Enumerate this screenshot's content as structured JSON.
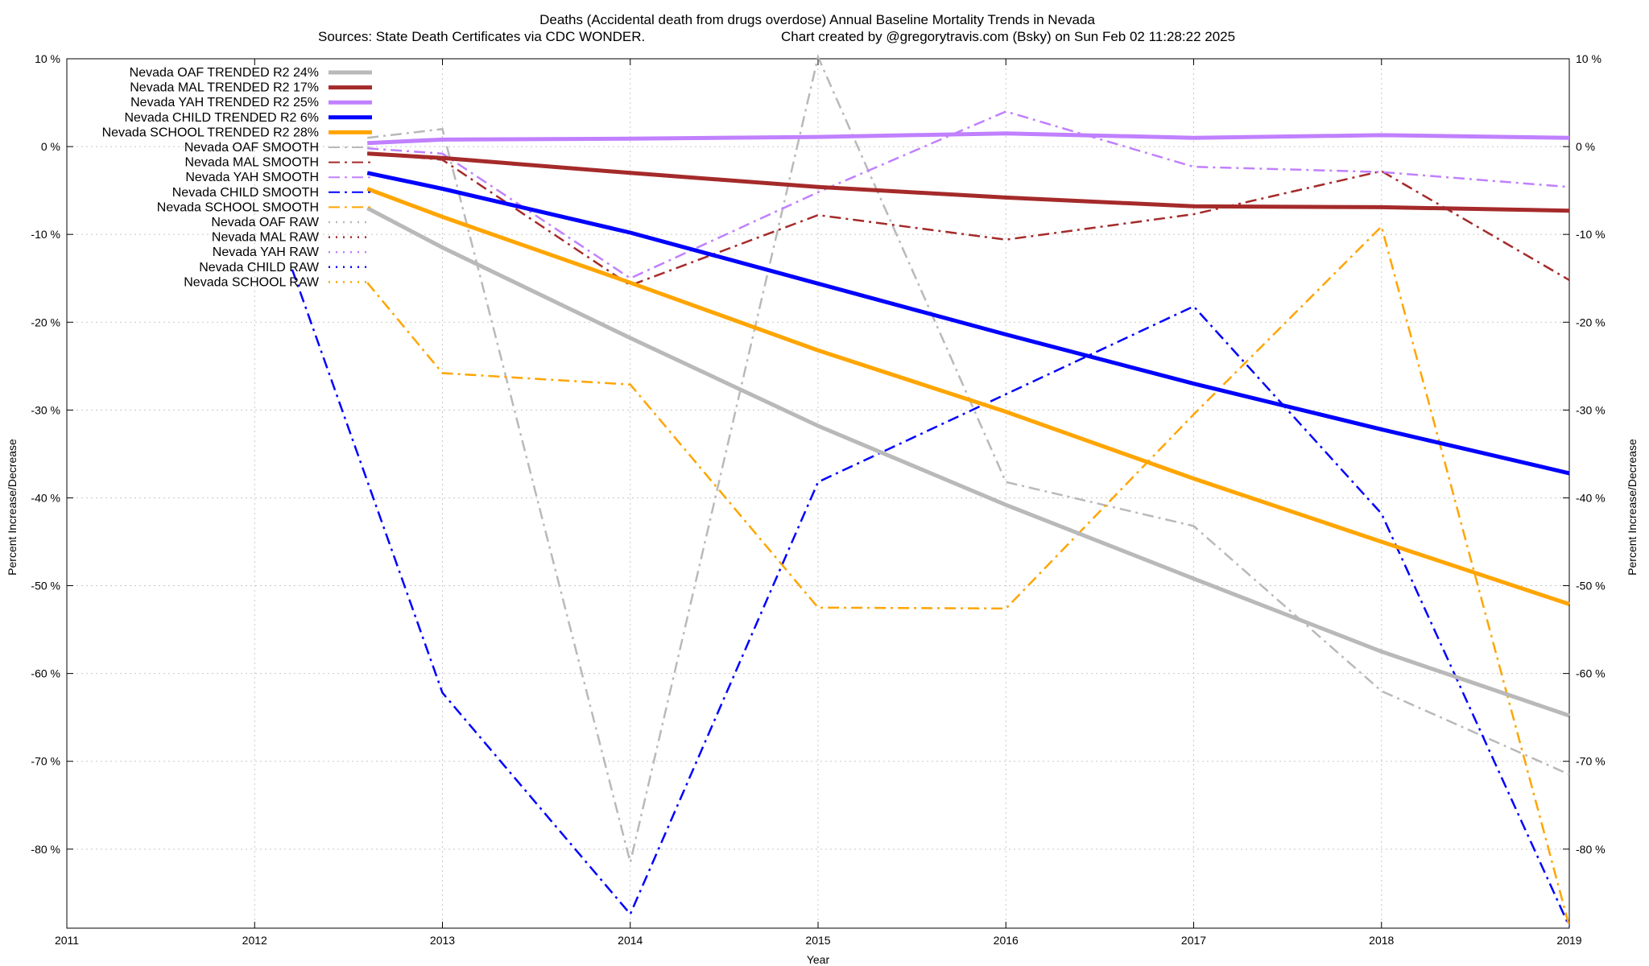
{
  "chart_data": {
    "type": "line",
    "title_line1": "Deaths (Accidental death from drugs overdose)  Annual Baseline Mortality Trends in Nevada",
    "title_line2_left": "Sources: State Death Certificates via CDC WONDER.",
    "title_line2_right": "Chart created by @gregorytravis.com (Bsky) on Sun Feb 02 11:28:22 2025",
    "xlabel": "Year",
    "ylabel_left": "Percent Increase/Decrease",
    "ylabel_right": "Percent Increase/Decrease",
    "xlim": [
      2011,
      2019
    ],
    "ylim": [
      -89,
      10
    ],
    "x_ticks": [
      "2011",
      "2012",
      "2013",
      "2014",
      "2015",
      "2016",
      "2017",
      "2018",
      "2019"
    ],
    "y_ticks_left": [
      "10 %",
      "0 %",
      "-10 %",
      "-20 %",
      "-30 %",
      "-40 %",
      "-50 %",
      "-60 %",
      "-70 %",
      "-80 %"
    ],
    "y_ticks_right": [
      "10 %",
      "0 %",
      "-10 %",
      "-20 %",
      "-30 %",
      "-40 %",
      "-50 %",
      "-60 %",
      "-70 %",
      "-80 %"
    ],
    "grid": true,
    "legend_position": "top-left",
    "series": [
      {
        "name": "Nevada OAF TRENDED R2  24%",
        "kind": "trended",
        "color": "#b9b9b9",
        "x": [
          2012.6,
          2013,
          2014,
          2015,
          2016,
          2017,
          2018,
          2019
        ],
        "y": [
          -7,
          -11.5,
          -21.8,
          -31.8,
          -40.8,
          -49.2,
          -57.5,
          -64.8
        ]
      },
      {
        "name": "Nevada MAL TRENDED R2  17%",
        "kind": "trended",
        "color": "#a52a2a",
        "x": [
          2012.6,
          2013,
          2014,
          2015,
          2016,
          2017,
          2018,
          2019
        ],
        "y": [
          -0.8,
          -1.3,
          -3,
          -4.6,
          -5.8,
          -6.8,
          -6.9,
          -7.3
        ]
      },
      {
        "name": "Nevada YAH TRENDED R2  25%",
        "kind": "trended",
        "color": "#c080ff",
        "x": [
          2012.6,
          2013,
          2014,
          2015,
          2016,
          2017,
          2018,
          2019
        ],
        "y": [
          0.4,
          0.8,
          0.9,
          1.1,
          1.5,
          1,
          1.3,
          1
        ]
      },
      {
        "name": "Nevada CHILD TRENDED R2  6%",
        "kind": "trended",
        "color": "#0000ff",
        "x": [
          2012.6,
          2013,
          2014,
          2015,
          2016,
          2017,
          2018,
          2019
        ],
        "y": [
          -3,
          -4.8,
          -9.8,
          -15.6,
          -21.4,
          -27,
          -32.2,
          -37.2
        ]
      },
      {
        "name": "Nevada SCHOOL TRENDED R2  28%",
        "kind": "trended",
        "color": "#ffa500",
        "x": [
          2012.6,
          2013,
          2014,
          2015,
          2016,
          2017,
          2018,
          2019
        ],
        "y": [
          -4.8,
          -8,
          -15.5,
          -23.2,
          -30.2,
          -37.8,
          -45,
          -52.1
        ]
      },
      {
        "name": "Nevada OAF SMOOTH",
        "kind": "smooth",
        "color": "#b9b9b9",
        "x": [
          2012.6,
          2013,
          2014,
          2015,
          2016,
          2017,
          2018,
          2019
        ],
        "y": [
          1,
          2,
          -81.5,
          10.2,
          -38.2,
          -43.2,
          -62,
          -71.5
        ]
      },
      {
        "name": "Nevada MAL SMOOTH",
        "kind": "smooth",
        "color": "#a52a2a",
        "x": [
          2012.6,
          2013,
          2014,
          2015,
          2016,
          2017,
          2018,
          2019
        ],
        "y": [
          -0.7,
          -1.5,
          -15.8,
          -7.8,
          -10.6,
          -7.7,
          -2.8,
          -15.2
        ]
      },
      {
        "name": "Nevada YAH SMOOTH",
        "kind": "smooth",
        "color": "#c080ff",
        "x": [
          2012.6,
          2013,
          2014,
          2015,
          2016,
          2017,
          2018,
          2019
        ],
        "y": [
          -0.2,
          -0.8,
          -15,
          -5.2,
          4,
          -2.3,
          -2.9,
          -4.6
        ]
      },
      {
        "name": "Nevada CHILD SMOOTH",
        "kind": "smooth",
        "color": "#0000ff",
        "x": [
          2012.2,
          2013,
          2014,
          2015,
          2016,
          2017,
          2018,
          2019
        ],
        "y": [
          -14,
          -62.2,
          -87.4,
          -38.2,
          -28.2,
          -18.2,
          -41.8,
          -88.8
        ]
      },
      {
        "name": "Nevada SCHOOL SMOOTH",
        "kind": "smooth",
        "color": "#ffa500",
        "x": [
          2012.6,
          2013,
          2014,
          2015,
          2016,
          2017,
          2018,
          2019
        ],
        "y": [
          -15.5,
          -25.8,
          -27.1,
          -52.5,
          -52.6,
          -30.5,
          -9.1,
          -88.8
        ]
      },
      {
        "name": "Nevada OAF RAW",
        "kind": "raw",
        "color": "#b9b9b9",
        "x": [],
        "y": []
      },
      {
        "name": "Nevada MAL RAW",
        "kind": "raw",
        "color": "#a52a2a",
        "x": [],
        "y": []
      },
      {
        "name": "Nevada YAH RAW",
        "kind": "raw",
        "color": "#c080ff",
        "x": [],
        "y": []
      },
      {
        "name": "Nevada CHILD RAW",
        "kind": "raw",
        "color": "#0000ff",
        "x": [],
        "y": []
      },
      {
        "name": "Nevada SCHOOL RAW",
        "kind": "raw",
        "color": "#ffa500",
        "x": [],
        "y": []
      }
    ]
  }
}
